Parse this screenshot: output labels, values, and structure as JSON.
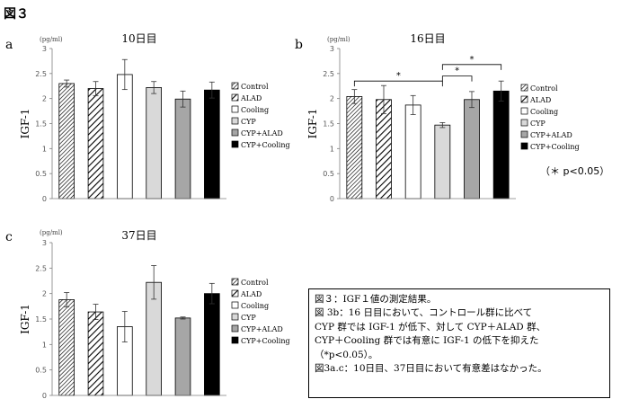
{
  "figure_title": "図３",
  "note": "（＊ p<0.05）",
  "caption": {
    "lines": [
      "図３：IGF１値の測定結果。",
      "図 3b：16 日目において、コントロール群に比べて",
      "CYP 群では IGF-1 が低下、対して CYP＋ALAD 群、",
      "CYP＋Cooling 群では有意に IGF-1 の低下を抑えた",
      "（*p<0.05）。",
      "図3a.c：10日目、37日目において有意差はなかった。"
    ]
  },
  "colors": {
    "control": "#ffffff",
    "alad": "#ffffff",
    "cooling": "#ffffff",
    "cyp": "#d9d9d9",
    "cyp_alad": "#a6a6a6",
    "cyp_cooling": "#000000",
    "axis": "#7f7f7f"
  },
  "chart_data": [
    {
      "type": "bar",
      "panel": "a",
      "title": "10日目",
      "ylabel": "IGF-1",
      "unit": "(pg/ml)",
      "ylim": [
        0,
        3
      ],
      "yticks": [
        "0",
        "0.5",
        "1",
        "1.5",
        "2",
        "2.5",
        "3"
      ],
      "categories": [
        "Control",
        "ALAD",
        "Cooling",
        "CYP",
        "CYP+ALAD",
        "CYP+Cooling"
      ],
      "values": [
        2.3,
        2.2,
        2.48,
        2.22,
        1.99,
        2.17
      ],
      "errors": [
        0.07,
        0.14,
        0.3,
        0.12,
        0.16,
        0.16
      ],
      "significance": []
    },
    {
      "type": "bar",
      "panel": "b",
      "title": "16日目",
      "ylabel": "IGF-1",
      "unit": "(pg/ml)",
      "ylim": [
        0,
        3
      ],
      "yticks": [
        "0",
        "0.5",
        "1",
        "1.5",
        "2",
        "2.5",
        "3"
      ],
      "categories": [
        "Control",
        "ALAD",
        "Cooling",
        "CYP",
        "CYP+ALAD",
        "CYP+Cooling"
      ],
      "values": [
        2.04,
        1.98,
        1.87,
        1.47,
        1.98,
        2.15
      ],
      "errors": [
        0.14,
        0.28,
        0.19,
        0.05,
        0.16,
        0.2
      ],
      "significance": [
        {
          "from": 0,
          "to": 3,
          "label": "*"
        },
        {
          "from": 3,
          "to": 4,
          "label": "*"
        },
        {
          "from": 3,
          "to": 5,
          "label": "*"
        }
      ]
    },
    {
      "type": "bar",
      "panel": "c",
      "title": "37日目",
      "ylabel": "IGF-1",
      "unit": "(pg/ml)",
      "ylim": [
        0,
        3
      ],
      "yticks": [
        "0",
        "0.5",
        "1",
        "1.5",
        "2",
        "2.5",
        "3"
      ],
      "categories": [
        "Control",
        "ALAD",
        "Cooling",
        "CYP",
        "CYP+ALAD",
        "CYP+Cooling"
      ],
      "values": [
        1.88,
        1.64,
        1.35,
        2.22,
        1.52,
        2.0
      ],
      "errors": [
        0.14,
        0.15,
        0.3,
        0.33,
        0.02,
        0.2
      ],
      "significance": []
    }
  ]
}
